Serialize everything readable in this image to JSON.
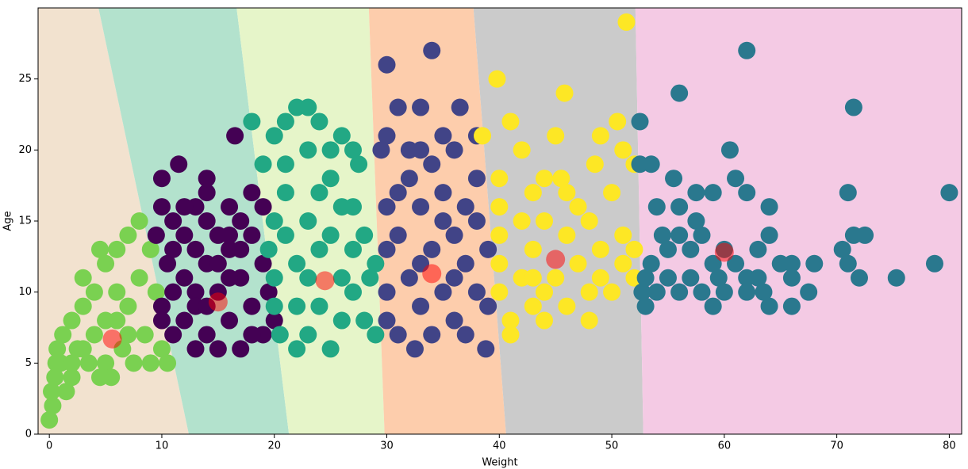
{
  "chart_data": {
    "type": "scatter",
    "xlabel": "Weight",
    "ylabel": "Age",
    "xlim": [
      -1,
      81.1
    ],
    "ylim": [
      0,
      30
    ],
    "xticks": [
      0,
      10,
      20,
      30,
      40,
      50,
      60,
      70,
      80
    ],
    "yticks": [
      0,
      5,
      10,
      15,
      20,
      25
    ],
    "region_colors": [
      "#f2e2cf",
      "#b3e2cd",
      "#e6f5c9",
      "#fdcdac",
      "#cbcbcb",
      "#f4cae4"
    ],
    "region_boundaries": [
      [
        12.4,
        4.37
      ],
      [
        21.3,
        16.65
      ],
      [
        29.8,
        28.4
      ],
      [
        40.6,
        37.7
      ],
      [
        52.8,
        52.1
      ]
    ],
    "clusters": [
      {
        "color": "#7ad151",
        "x": [
          0,
          0.3,
          0.2,
          0.5,
          0.6,
          0.7,
          1,
          1.2,
          1.5,
          2,
          2,
          2.5,
          3,
          3,
          3.5,
          4,
          4,
          4.5,
          5,
          5,
          5,
          6,
          6,
          6.5,
          7,
          7,
          7.5,
          8,
          8,
          8.5,
          9,
          9,
          9.5,
          10,
          10.5,
          5.5,
          4.5,
          7,
          3,
          2,
          6
        ],
        "y": [
          1,
          2,
          3,
          4,
          5,
          6,
          5,
          7,
          3,
          8,
          4,
          6,
          11,
          9,
          5,
          7,
          10,
          13,
          12,
          8,
          5,
          10,
          13,
          6,
          14,
          9,
          5,
          15,
          11,
          7,
          13,
          5,
          10,
          6,
          5,
          4,
          4,
          7,
          6,
          5,
          8
        ]
      },
      {
        "color": "#440154",
        "x": [
          10,
          10,
          11.5,
          16.5,
          13,
          14,
          14,
          9.5,
          10.5,
          10,
          10,
          11,
          11,
          12,
          12,
          12,
          13,
          13,
          13,
          14,
          14,
          14,
          15,
          15,
          15,
          16,
          16,
          16,
          17,
          17,
          17,
          18,
          18,
          18,
          19,
          19,
          19.5,
          11,
          12,
          16,
          17,
          18,
          13,
          15,
          11,
          14,
          16,
          19,
          20
        ],
        "y": [
          18,
          16,
          19,
          21,
          16,
          17,
          18,
          14,
          12,
          9,
          8,
          10,
          7,
          14,
          11,
          8,
          13,
          6,
          10,
          15,
          12,
          7,
          14,
          10,
          6,
          13,
          16,
          8,
          11,
          15,
          6,
          14,
          9,
          17,
          12,
          7,
          10,
          15,
          16,
          11,
          13,
          7,
          9,
          12,
          13,
          9,
          14,
          16,
          8
        ]
      },
      {
        "color": "#22a884",
        "x": [
          18,
          19,
          20,
          21,
          22,
          23,
          24,
          25,
          26,
          27,
          27.5,
          23,
          21,
          20,
          19.5,
          20,
          20,
          20.5,
          21,
          22,
          22,
          22,
          23,
          23,
          23,
          24,
          24,
          24,
          25,
          25,
          26,
          26,
          27,
          27,
          27,
          28,
          28,
          28.5,
          29,
          21,
          25,
          26,
          29
        ],
        "y": [
          22,
          19,
          21,
          22,
          23,
          23,
          22,
          20,
          21,
          20,
          19,
          20,
          17,
          15,
          13,
          11,
          9,
          7,
          14,
          12,
          9,
          6,
          15,
          11,
          7,
          17,
          13,
          9,
          6,
          14,
          11,
          8,
          16,
          13,
          10,
          14,
          8,
          11,
          7,
          19,
          18,
          16,
          12
        ]
      },
      {
        "color": "#414487",
        "x": [
          30,
          34,
          31,
          33,
          36.5,
          30,
          35,
          38,
          29.5,
          32,
          33,
          36,
          38,
          30,
          30,
          30,
          30,
          31,
          31,
          32,
          32,
          32.5,
          33,
          33,
          34,
          34,
          35,
          35,
          36,
          36,
          37,
          37,
          37,
          38,
          38,
          38.8,
          39,
          39,
          31,
          34,
          36,
          33,
          35
        ],
        "y": [
          26,
          27,
          23,
          23,
          23,
          21,
          21,
          21,
          20,
          20,
          20,
          20,
          18,
          16,
          13,
          10,
          8,
          7,
          14,
          18,
          11,
          6,
          16,
          9,
          13,
          7,
          17,
          10,
          14,
          8,
          16,
          12,
          7,
          15,
          10,
          6,
          13,
          9,
          17,
          19,
          11,
          12,
          15
        ]
      },
      {
        "color": "#fde725",
        "x": [
          51.3,
          39.8,
          45.8,
          41,
          50.5,
          38.5,
          45,
          49,
          42,
          51,
          40,
          44,
          48.5,
          52,
          40,
          40,
          40,
          40,
          41,
          41,
          42,
          42,
          43,
          43,
          43,
          44,
          44,
          45,
          45.5,
          46,
          46,
          47,
          47,
          48,
          48,
          49,
          49,
          50,
          50,
          51,
          51,
          52,
          52,
          46,
          44,
          48,
          43
        ],
        "y": [
          29,
          25,
          24,
          22,
          22,
          21,
          21,
          21,
          20,
          20,
          18,
          18,
          19,
          19,
          16,
          14,
          12,
          10,
          8,
          7,
          15,
          11,
          17,
          13,
          9,
          15,
          8,
          11,
          18,
          14,
          9,
          16,
          12,
          8,
          15,
          11,
          13,
          17,
          10,
          14,
          12,
          11,
          13,
          17,
          10,
          10,
          11
        ]
      },
      {
        "color": "#2a788e",
        "x": [
          62,
          56,
          71.5,
          52.5,
          60.5,
          52.5,
          53.5,
          55.5,
          61,
          71,
          80,
          54,
          56,
          57.5,
          59,
          62,
          64,
          57.5,
          54.5,
          56,
          58,
          64,
          71.5,
          72.5,
          53.5,
          55,
          57,
          59,
          60,
          61,
          63,
          65,
          66,
          68,
          70.5,
          71,
          78.7,
          53,
          55,
          57,
          59.5,
          62,
          63,
          66,
          72,
          75.3,
          52.7,
          54,
          56,
          58,
          60,
          62,
          63.5,
          67.5,
          53,
          59,
          64,
          66
        ],
        "y": [
          27,
          24,
          23,
          22,
          20,
          19,
          19,
          18,
          18,
          17,
          17,
          16,
          16,
          17,
          17,
          17,
          16,
          15,
          14,
          14,
          14,
          14,
          14,
          14,
          12,
          13,
          13,
          12,
          13,
          12,
          13,
          12,
          12,
          12,
          13,
          12,
          12,
          11,
          11,
          11,
          11,
          11,
          11,
          11,
          11,
          11,
          10,
          10,
          10,
          10,
          10,
          10,
          10,
          10,
          9,
          9,
          9,
          9
        ]
      }
    ],
    "centroids": {
      "color": "#ff0000",
      "opacity": 0.5,
      "x": [
        5.6,
        15,
        24.5,
        34,
        45,
        60
      ],
      "y": [
        6.7,
        9.3,
        10.8,
        11.3,
        12.3,
        12.8
      ]
    }
  }
}
